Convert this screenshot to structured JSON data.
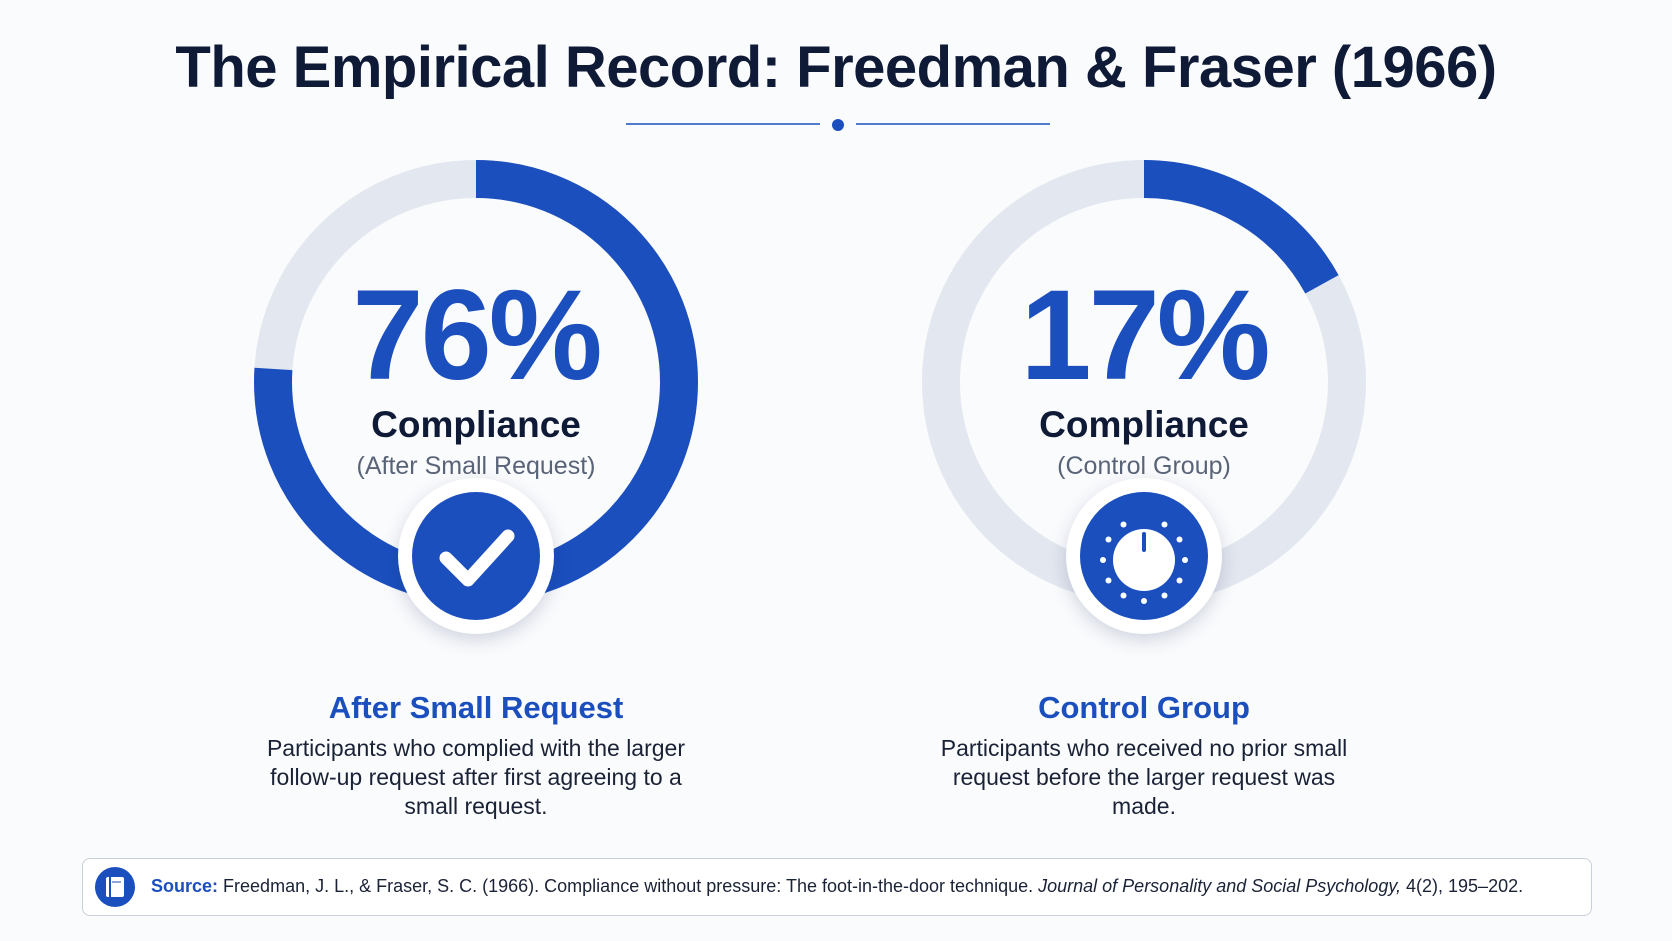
{
  "title": "The Empirical Record: Freedman & Fraser (1966)",
  "colors": {
    "accent": "#1b4fbe",
    "track": "#e3e7ef",
    "text": "#0f1a36"
  },
  "chart_data": {
    "type": "pie",
    "categories": [
      "After Small Request",
      "Control Group"
    ],
    "series": [
      {
        "values": [
          76,
          17
        ]
      }
    ],
    "ylim": [
      0,
      100
    ],
    "gauges": [
      {
        "value": 76,
        "value_label": "76%",
        "label": "Compliance",
        "sublabel": "(After Small Request)",
        "heading": "After Small Request",
        "description": "Participants who complied with the larger follow-up request after first agreeing to a small request.",
        "icon": "check-icon"
      },
      {
        "value": 17,
        "value_label": "17%",
        "label": "Compliance",
        "sublabel": "(Control Group)",
        "heading": "Control Group",
        "description": "Participants who received no prior small request before the larger request was made.",
        "icon": "dial-icon"
      }
    ]
  },
  "source": {
    "label": "Source:",
    "text": "Freedman, J. L., & Fraser, S. C. (1966). Compliance without pressure: The foot-in-the-door technique.",
    "journal": "Journal of Personality and Social Psychology,",
    "citation_tail": "4(2), 195–202.",
    "icon": "book-icon"
  }
}
